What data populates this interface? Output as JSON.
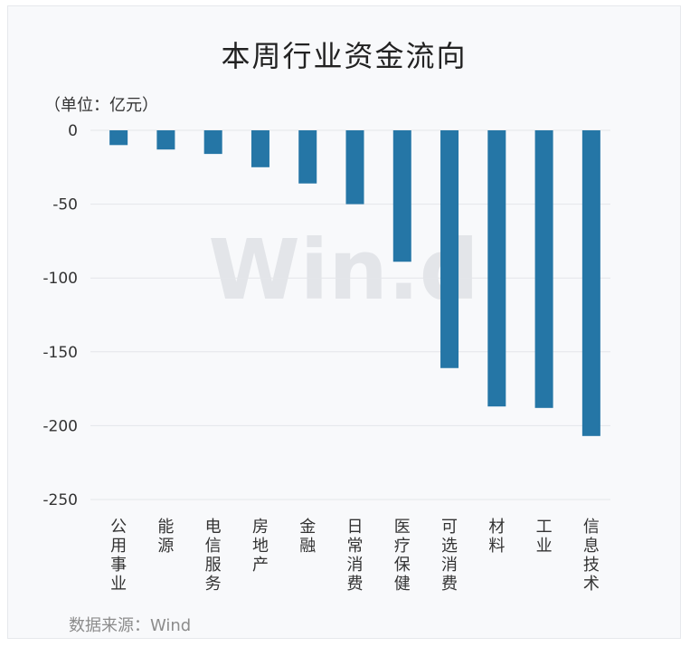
{
  "title": "本周行业资金流向",
  "unit_label": "（单位：亿元）",
  "source": "数据来源：Wind",
  "watermark": "Win.d",
  "chart_data": {
    "type": "bar",
    "title": "本周行业资金流向",
    "categories": [
      "公用事业",
      "能源",
      "电信服务",
      "房地产",
      "金融",
      "日常消费",
      "医疗保健",
      "可选消费",
      "材料",
      "工业",
      "信息技术"
    ],
    "values": [
      -10,
      -13,
      -16,
      -25,
      -36,
      -50,
      -89,
      -161,
      -187,
      -188,
      -207
    ],
    "ylim": [
      -250,
      0
    ],
    "yticks": [
      0,
      -50,
      -100,
      -150,
      -200,
      -250
    ],
    "grid": true,
    "bar_color": "#2576a6"
  }
}
